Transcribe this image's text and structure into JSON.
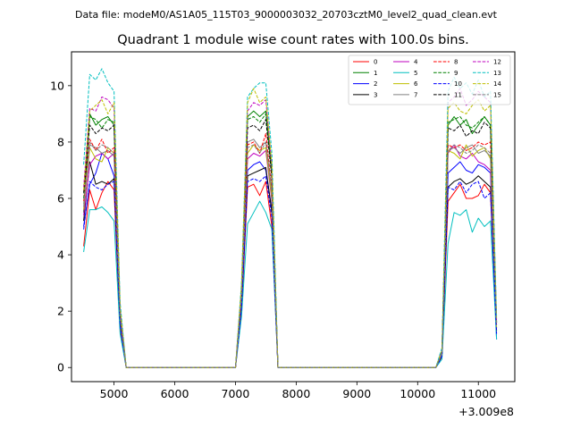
{
  "figure": {
    "suptitle": "Data file: modeM0/AS1A05_115T03_9000003032_20703cztM0_level2_quad_clean.evt",
    "title": "Quadrant 1 module wise count rates with 100.0s bins.",
    "x_offset_label": "+3.009e8"
  },
  "chart_data": {
    "type": "line",
    "title": "Quadrant 1 module wise count rates with 100.0s bins.",
    "xlabel": "",
    "ylabel": "",
    "xlim": [
      4300,
      11600
    ],
    "ylim": [
      -0.5,
      11.2
    ],
    "x_offset": 300900000,
    "x_ticks": [
      5000,
      6000,
      7000,
      8000,
      9000,
      10000,
      11000
    ],
    "y_ticks": [
      0,
      2,
      4,
      6,
      8,
      10
    ],
    "x_tick_labels": [
      "5000",
      "6000",
      "7000",
      "8000",
      "9000",
      "10000",
      "11000"
    ],
    "y_tick_labels": [
      "0",
      "2",
      "4",
      "6",
      "8",
      "10"
    ],
    "grid": false,
    "legend_position": "top-right",
    "x": [
      4500,
      4600,
      4700,
      4800,
      4900,
      5000,
      5100,
      5200,
      5300,
      5400,
      5500,
      5600,
      5700,
      5800,
      5900,
      6000,
      6100,
      6200,
      6300,
      6400,
      6500,
      6600,
      6700,
      6800,
      6900,
      7000,
      7100,
      7200,
      7300,
      7400,
      7500,
      7600,
      7700,
      7800,
      7900,
      8000,
      8100,
      8200,
      8300,
      8400,
      8500,
      8600,
      8700,
      8800,
      8900,
      9000,
      9100,
      9200,
      9300,
      9400,
      9500,
      9600,
      9700,
      9800,
      9900,
      10000,
      10100,
      10200,
      10300,
      10400,
      10500,
      10600,
      10700,
      10800,
      10900,
      11000,
      11100,
      11200,
      11300
    ],
    "series": [
      {
        "name": "0",
        "color": "#ff0000",
        "style": "solid",
        "values": [
          4.3,
          6.3,
          5.6,
          6.2,
          6.6,
          6.3,
          1.4,
          0,
          0,
          0,
          0,
          0,
          0,
          0,
          0,
          0,
          0,
          0,
          0,
          0,
          0,
          0,
          0,
          0,
          0,
          0,
          2.0,
          6.4,
          6.5,
          6.1,
          6.6,
          5.0,
          0,
          0,
          0,
          0,
          0,
          0,
          0,
          0,
          0,
          0,
          0,
          0,
          0,
          0,
          0,
          0,
          0,
          0,
          0,
          0,
          0,
          0,
          0,
          0,
          0,
          0,
          0,
          0.4,
          5.9,
          6.2,
          6.5,
          6.0,
          6.0,
          6.1,
          6.5,
          6.2,
          1.2
        ]
      },
      {
        "name": "1",
        "color": "#008000",
        "style": "solid",
        "values": [
          5.5,
          9.0,
          8.6,
          8.8,
          8.9,
          8.6,
          2.0,
          0,
          0,
          0,
          0,
          0,
          0,
          0,
          0,
          0,
          0,
          0,
          0,
          0,
          0,
          0,
          0,
          0,
          0,
          0,
          2.6,
          8.9,
          9.1,
          8.9,
          9.1,
          6.9,
          0,
          0,
          0,
          0,
          0,
          0,
          0,
          0,
          0,
          0,
          0,
          0,
          0,
          0,
          0,
          0,
          0,
          0,
          0,
          0,
          0,
          0,
          0,
          0,
          0,
          0,
          0,
          0.6,
          8.6,
          8.9,
          8.6,
          8.8,
          8.3,
          8.6,
          8.9,
          8.6,
          1.6
        ]
      },
      {
        "name": "2",
        "color": "#0000ff",
        "style": "solid",
        "values": [
          5.0,
          6.5,
          6.9,
          7.6,
          7.4,
          6.8,
          1.6,
          0,
          0,
          0,
          0,
          0,
          0,
          0,
          0,
          0,
          0,
          0,
          0,
          0,
          0,
          0,
          0,
          0,
          0,
          0,
          2.2,
          7.0,
          7.2,
          7.3,
          7.0,
          5.6,
          0,
          0,
          0,
          0,
          0,
          0,
          0,
          0,
          0,
          0,
          0,
          0,
          0,
          0,
          0,
          0,
          0,
          0,
          0,
          0,
          0,
          0,
          0,
          0,
          0,
          0,
          0,
          0.5,
          6.9,
          7.1,
          7.3,
          7.0,
          6.9,
          7.2,
          7.1,
          6.9,
          1.0
        ]
      },
      {
        "name": "3",
        "color": "#000000",
        "style": "solid",
        "values": [
          5.2,
          7.3,
          6.5,
          6.6,
          6.5,
          6.7,
          1.6,
          0,
          0,
          0,
          0,
          0,
          0,
          0,
          0,
          0,
          0,
          0,
          0,
          0,
          0,
          0,
          0,
          0,
          0,
          0,
          2.2,
          6.8,
          6.9,
          7.0,
          7.1,
          5.5,
          0,
          0,
          0,
          0,
          0,
          0,
          0,
          0,
          0,
          0,
          0,
          0,
          0,
          0,
          0,
          0,
          0,
          0,
          0,
          0,
          0,
          0,
          0,
          0,
          0,
          0,
          0,
          0.4,
          6.4,
          6.6,
          6.7,
          6.5,
          6.6,
          6.8,
          6.6,
          6.4,
          1.3
        ]
      },
      {
        "name": "4",
        "color": "#bf00bf",
        "style": "solid",
        "values": [
          5.4,
          7.2,
          7.5,
          7.6,
          7.4,
          7.6,
          1.8,
          0,
          0,
          0,
          0,
          0,
          0,
          0,
          0,
          0,
          0,
          0,
          0,
          0,
          0,
          0,
          0,
          0,
          0,
          0,
          2.4,
          7.4,
          7.6,
          7.5,
          7.7,
          5.9,
          0,
          0,
          0,
          0,
          0,
          0,
          0,
          0,
          0,
          0,
          0,
          0,
          0,
          0,
          0,
          0,
          0,
          0,
          0,
          0,
          0,
          0,
          0,
          0,
          0,
          0,
          0,
          0.5,
          7.6,
          7.9,
          7.5,
          7.4,
          7.6,
          7.3,
          7.2,
          7.0,
          1.4
        ]
      },
      {
        "name": "5",
        "color": "#00bfbf",
        "style": "solid",
        "values": [
          4.1,
          5.6,
          5.6,
          5.7,
          5.5,
          5.2,
          1.2,
          0,
          0,
          0,
          0,
          0,
          0,
          0,
          0,
          0,
          0,
          0,
          0,
          0,
          0,
          0,
          0,
          0,
          0,
          0,
          1.8,
          5.1,
          5.5,
          5.9,
          5.5,
          4.9,
          0,
          0,
          0,
          0,
          0,
          0,
          0,
          0,
          0,
          0,
          0,
          0,
          0,
          0,
          0,
          0,
          0,
          0,
          0,
          0,
          0,
          0,
          0,
          0,
          0,
          0,
          0,
          0.3,
          4.4,
          5.5,
          5.4,
          5.6,
          4.8,
          5.3,
          5.0,
          5.2,
          1.0
        ]
      },
      {
        "name": "6",
        "color": "#bfbf00",
        "style": "solid",
        "values": [
          5.6,
          7.8,
          7.4,
          7.3,
          7.8,
          7.6,
          1.8,
          0,
          0,
          0,
          0,
          0,
          0,
          0,
          0,
          0,
          0,
          0,
          0,
          0,
          0,
          0,
          0,
          0,
          0,
          0,
          2.4,
          7.6,
          7.9,
          7.7,
          7.8,
          6.0,
          0,
          0,
          0,
          0,
          0,
          0,
          0,
          0,
          0,
          0,
          0,
          0,
          0,
          0,
          0,
          0,
          0,
          0,
          0,
          0,
          0,
          0,
          0,
          0,
          0,
          0,
          0,
          0.5,
          7.7,
          7.6,
          7.4,
          7.9,
          7.5,
          7.7,
          7.8,
          7.4,
          1.4
        ]
      },
      {
        "name": "7",
        "color": "#808080",
        "style": "solid",
        "values": [
          5.7,
          7.9,
          7.8,
          7.6,
          7.7,
          7.5,
          1.8,
          0,
          0,
          0,
          0,
          0,
          0,
          0,
          0,
          0,
          0,
          0,
          0,
          0,
          0,
          0,
          0,
          0,
          0,
          0,
          2.5,
          8.0,
          8.1,
          7.8,
          8.0,
          6.2,
          0,
          0,
          0,
          0,
          0,
          0,
          0,
          0,
          0,
          0,
          0,
          0,
          0,
          0,
          0,
          0,
          0,
          0,
          0,
          0,
          0,
          0,
          0,
          0,
          0,
          0,
          0,
          0.5,
          7.7,
          7.8,
          7.6,
          7.8,
          7.9,
          7.6,
          7.7,
          7.5,
          1.5
        ]
      },
      {
        "name": "8",
        "color": "#ff0000",
        "style": "dashed",
        "values": [
          5.9,
          8.1,
          7.7,
          8.1,
          7.6,
          7.8,
          1.9,
          0,
          0,
          0,
          0,
          0,
          0,
          0,
          0,
          0,
          0,
          0,
          0,
          0,
          0,
          0,
          0,
          0,
          0,
          0,
          2.6,
          7.9,
          8.0,
          7.6,
          8.3,
          6.3,
          0,
          0,
          0,
          0,
          0,
          0,
          0,
          0,
          0,
          0,
          0,
          0,
          0,
          0,
          0,
          0,
          0,
          0,
          0,
          0,
          0,
          0,
          0,
          0,
          0,
          0,
          0,
          0.6,
          7.9,
          7.8,
          7.9,
          7.7,
          7.8,
          8.0,
          7.9,
          8.0,
          1.5
        ]
      },
      {
        "name": "9",
        "color": "#008000",
        "style": "dashed",
        "values": [
          6.0,
          8.9,
          8.8,
          8.5,
          8.8,
          8.7,
          2.0,
          0,
          0,
          0,
          0,
          0,
          0,
          0,
          0,
          0,
          0,
          0,
          0,
          0,
          0,
          0,
          0,
          0,
          0,
          0,
          2.7,
          8.8,
          8.9,
          8.7,
          9.0,
          6.8,
          0,
          0,
          0,
          0,
          0,
          0,
          0,
          0,
          0,
          0,
          0,
          0,
          0,
          0,
          0,
          0,
          0,
          0,
          0,
          0,
          0,
          0,
          0,
          0,
          0,
          0,
          0,
          0.6,
          8.7,
          8.8,
          8.9,
          8.6,
          8.5,
          8.7,
          8.9,
          8.6,
          1.6
        ]
      },
      {
        "name": "10",
        "color": "#0000ff",
        "style": "dashed",
        "values": [
          4.9,
          6.6,
          6.4,
          6.3,
          6.5,
          6.6,
          1.5,
          0,
          0,
          0,
          0,
          0,
          0,
          0,
          0,
          0,
          0,
          0,
          0,
          0,
          0,
          0,
          0,
          0,
          0,
          0,
          2.1,
          6.6,
          6.7,
          6.6,
          6.8,
          5.3,
          0,
          0,
          0,
          0,
          0,
          0,
          0,
          0,
          0,
          0,
          0,
          0,
          0,
          0,
          0,
          0,
          0,
          0,
          0,
          0,
          0,
          0,
          0,
          0,
          0,
          0,
          0,
          0.4,
          6.4,
          6.3,
          6.6,
          6.2,
          6.5,
          6.6,
          6.0,
          6.2,
          1.2
        ]
      },
      {
        "name": "11",
        "color": "#000000",
        "style": "dashed",
        "values": [
          6.2,
          8.6,
          8.3,
          8.5,
          8.4,
          8.6,
          2.0,
          0,
          0,
          0,
          0,
          0,
          0,
          0,
          0,
          0,
          0,
          0,
          0,
          0,
          0,
          0,
          0,
          0,
          0,
          0,
          2.7,
          8.5,
          8.6,
          8.4,
          8.8,
          6.7,
          0,
          0,
          0,
          0,
          0,
          0,
          0,
          0,
          0,
          0,
          0,
          0,
          0,
          0,
          0,
          0,
          0,
          0,
          0,
          0,
          0,
          0,
          0,
          0,
          0,
          0,
          0,
          0.6,
          8.5,
          8.4,
          8.6,
          8.2,
          8.4,
          8.3,
          8.7,
          8.5,
          1.6
        ]
      },
      {
        "name": "12",
        "color": "#bf00bf",
        "style": "dashed",
        "values": [
          6.4,
          9.2,
          9.1,
          9.6,
          9.5,
          9.2,
          2.1,
          0,
          0,
          0,
          0,
          0,
          0,
          0,
          0,
          0,
          0,
          0,
          0,
          0,
          0,
          0,
          0,
          0,
          0,
          0,
          2.8,
          9.1,
          9.4,
          9.3,
          9.5,
          7.1,
          0,
          0,
          0,
          0,
          0,
          0,
          0,
          0,
          0,
          0,
          0,
          0,
          0,
          0,
          0,
          0,
          0,
          0,
          0,
          0,
          0,
          0,
          0,
          0,
          0,
          0,
          0,
          0.6,
          9.4,
          9.6,
          9.9,
          9.3,
          9.5,
          9.8,
          9.6,
          9.4,
          1.7
        ]
      },
      {
        "name": "13",
        "color": "#00bfbf",
        "style": "dashed",
        "values": [
          7.2,
          10.4,
          10.2,
          10.6,
          10.1,
          9.8,
          2.3,
          0,
          0,
          0,
          0,
          0,
          0,
          0,
          0,
          0,
          0,
          0,
          0,
          0,
          0,
          0,
          0,
          0,
          0,
          0,
          3.0,
          9.6,
          9.9,
          10.1,
          10.1,
          7.6,
          0,
          0,
          0,
          0,
          0,
          0,
          0,
          0,
          0,
          0,
          0,
          0,
          0,
          0,
          0,
          0,
          0,
          0,
          0,
          0,
          0,
          0,
          0,
          0,
          0,
          0,
          0,
          0.7,
          9.8,
          10.3,
          9.9,
          10.1,
          9.7,
          10.2,
          9.6,
          9.8,
          1.8
        ]
      },
      {
        "name": "14",
        "color": "#bfbf00",
        "style": "dashed",
        "values": [
          6.3,
          9.1,
          9.3,
          9.5,
          9.0,
          9.4,
          2.1,
          0,
          0,
          0,
          0,
          0,
          0,
          0,
          0,
          0,
          0,
          0,
          0,
          0,
          0,
          0,
          0,
          0,
          0,
          0,
          2.9,
          9.4,
          9.9,
          9.4,
          9.6,
          7.2,
          0,
          0,
          0,
          0,
          0,
          0,
          0,
          0,
          0,
          0,
          0,
          0,
          0,
          0,
          0,
          0,
          0,
          0,
          0,
          0,
          0,
          0,
          0,
          0,
          0,
          0,
          0,
          0.6,
          9.2,
          9.4,
          9.1,
          9.0,
          9.3,
          9.5,
          9.1,
          9.3,
          1.7
        ]
      },
      {
        "name": "15",
        "color": "#808080",
        "style": "dashed",
        "values": [
          5.8,
          8.0,
          7.7,
          7.9,
          7.8,
          7.6,
          1.8,
          0,
          0,
          0,
          0,
          0,
          0,
          0,
          0,
          0,
          0,
          0,
          0,
          0,
          0,
          0,
          0,
          0,
          0,
          0,
          2.5,
          7.8,
          7.9,
          7.6,
          8.0,
          6.2,
          0,
          0,
          0,
          0,
          0,
          0,
          0,
          0,
          0,
          0,
          0,
          0,
          0,
          0,
          0,
          0,
          0,
          0,
          0,
          0,
          0,
          0,
          0,
          0,
          0,
          0,
          0,
          0.5,
          7.7,
          7.9,
          7.8,
          7.6,
          7.7,
          7.9,
          7.8,
          7.6,
          1.5
        ]
      }
    ]
  }
}
